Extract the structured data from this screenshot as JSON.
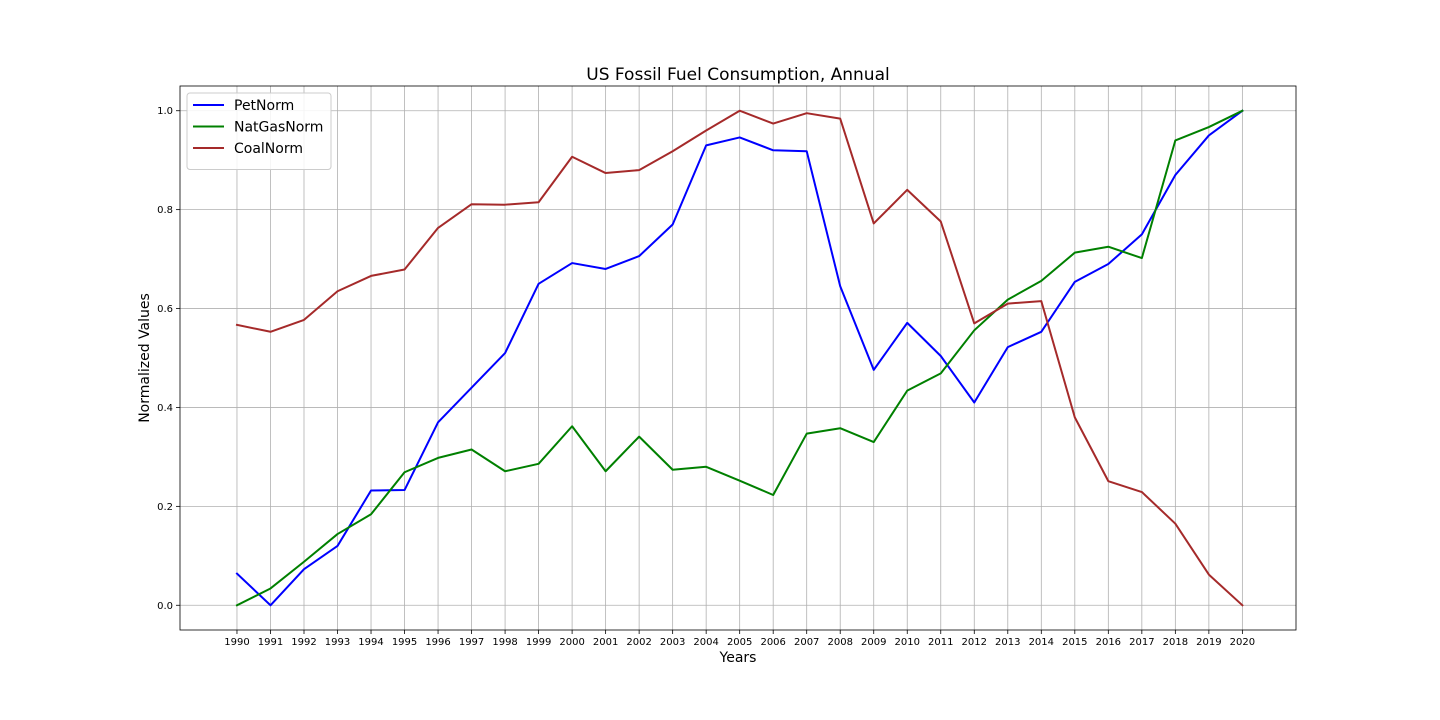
{
  "chart_data": {
    "type": "line",
    "title": "US Fossil Fuel Consumption, Annual",
    "xlabel": "Years",
    "ylabel": "Normalized Values",
    "x": [
      1990,
      1991,
      1992,
      1993,
      1994,
      1995,
      1996,
      1997,
      1998,
      1999,
      2000,
      2001,
      2002,
      2003,
      2004,
      2005,
      2006,
      2007,
      2008,
      2009,
      2010,
      2011,
      2012,
      2013,
      2014,
      2015,
      2016,
      2017,
      2018,
      2019,
      2020
    ],
    "x_tick_labels": [
      "1990",
      "1991",
      "1992",
      "1993",
      "1994",
      "1995",
      "1996",
      "1997",
      "1998",
      "1999",
      "2000",
      "2001",
      "2002",
      "2003",
      "2004",
      "2005",
      "2006",
      "2007",
      "2008",
      "2009",
      "2010",
      "2011",
      "2012",
      "2013",
      "2014",
      "2015",
      "2016",
      "2017",
      "2018",
      "2019",
      "2020"
    ],
    "y_tick_labels": [
      "0.0",
      "0.2",
      "0.4",
      "0.6",
      "0.8",
      "1.0"
    ],
    "y_ticks": [
      0.0,
      0.2,
      0.4,
      0.6,
      0.8,
      1.0
    ],
    "xlim": [
      1988.3,
      2021.6
    ],
    "ylim": [
      -0.05,
      1.05
    ],
    "grid": true,
    "legend_position": "top-left",
    "series": [
      {
        "name": "PetNorm",
        "color": "#0000ff",
        "values": [
          0.064,
          0.0,
          0.073,
          0.12,
          0.232,
          0.233,
          0.37,
          0.44,
          0.51,
          0.65,
          0.692,
          0.68,
          0.706,
          0.77,
          0.93,
          0.946,
          0.92,
          0.918,
          0.645,
          0.476,
          0.571,
          0.504,
          0.41,
          0.522,
          0.553,
          0.654,
          0.69,
          0.75,
          0.87,
          0.95,
          1.0
        ]
      },
      {
        "name": "NatGasNorm",
        "color": "#008000",
        "values": [
          0.0,
          0.034,
          0.088,
          0.144,
          0.184,
          0.269,
          0.298,
          0.315,
          0.271,
          0.286,
          0.362,
          0.271,
          0.341,
          0.274,
          0.28,
          0.252,
          0.223,
          0.347,
          0.358,
          0.33,
          0.434,
          0.469,
          0.556,
          0.618,
          0.656,
          0.713,
          0.725,
          0.702,
          0.94,
          0.967,
          1.0
        ]
      },
      {
        "name": "CoalNorm",
        "color": "#a52a2a",
        "values": [
          0.567,
          0.553,
          0.577,
          0.635,
          0.666,
          0.679,
          0.763,
          0.811,
          0.81,
          0.815,
          0.907,
          0.874,
          0.88,
          0.918,
          0.96,
          1.0,
          0.974,
          0.995,
          0.984,
          0.772,
          0.84,
          0.776,
          0.57,
          0.61,
          0.615,
          0.38,
          0.251,
          0.229,
          0.165,
          0.062,
          0.0
        ]
      }
    ]
  }
}
